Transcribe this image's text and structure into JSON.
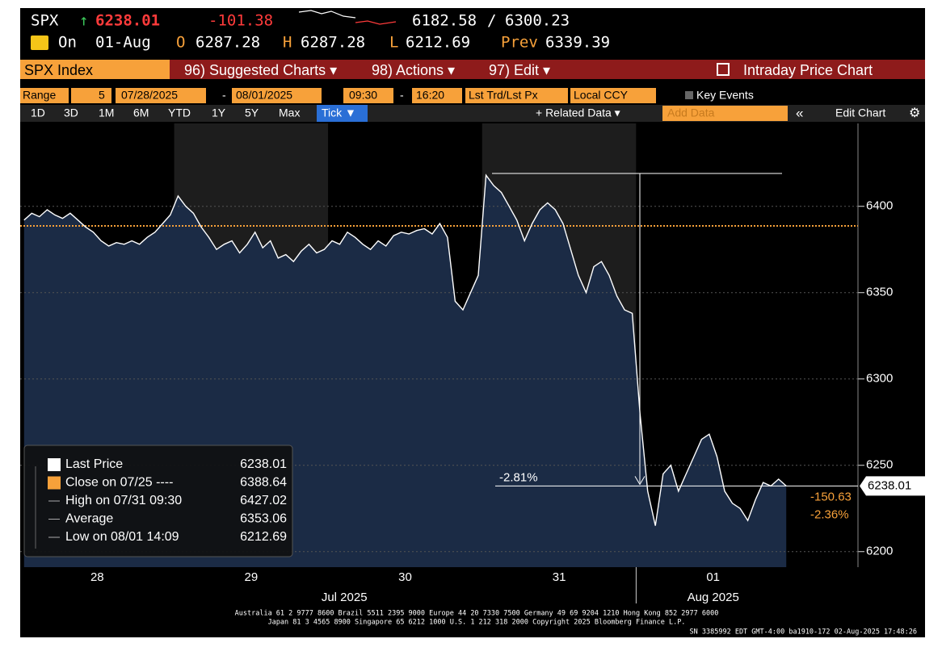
{
  "header": {
    "ticker": "SPX",
    "arrow": "↑",
    "last": "6238.01",
    "change": "-101.38",
    "range_low": "6182.58",
    "range_sep": "/",
    "range_high": "6300.23",
    "on": "On",
    "date": "01-Aug",
    "open_label": "O",
    "open": "6287.28",
    "high_label": "H",
    "high": "6287.28",
    "low_label": "L",
    "low": "6212.69",
    "prev_label": "Prev",
    "prev": "6339.39"
  },
  "toolbar": {
    "security": "SPX Index",
    "items": [
      "96) Suggested Charts ▾",
      "98) Actions ▾",
      "97) Edit ▾"
    ],
    "title": "Intraday Price Chart"
  },
  "range_bar": {
    "label": "Range",
    "days": "5",
    "start_date": "07/28/2025",
    "dash1": "-",
    "end_date": "08/01/2025",
    "start_time": "09:30",
    "dash2": "-",
    "end_time": "16:20",
    "field": "Lst Trd/Lst Px",
    "currency": "Local CCY",
    "key_events": "Key Events"
  },
  "tabs": {
    "periods": [
      "1D",
      "3D",
      "1M",
      "6M",
      "YTD",
      "1Y",
      "5Y",
      "Max"
    ],
    "active": "Tick ▼",
    "related": "+ Related Data ▾",
    "add_data": "Add Data",
    "collapse": "«",
    "edit": "Edit Chart",
    "settings": "⚙"
  },
  "chart_data": {
    "type": "line",
    "day_labels": [
      "28",
      "29",
      "30",
      "31",
      "01"
    ],
    "month_labels": [
      "Jul 2025",
      "Aug 2025"
    ],
    "series": [
      {
        "name": "Last Price",
        "color": "#ffffff",
        "values": [
          6392,
          6396,
          6394,
          6398,
          6395,
          6393,
          6396,
          6392,
          6388,
          6385,
          6380,
          6377,
          6379,
          6378,
          6380,
          6378,
          6382,
          6385,
          6390,
          6395,
          6406,
          6400,
          6396,
          6388,
          6382,
          6375,
          6378,
          6380,
          6373,
          6378,
          6385,
          6376,
          6380,
          6370,
          6372,
          6368,
          6374,
          6378,
          6373,
          6375,
          6380,
          6378,
          6385,
          6382,
          6378,
          6375,
          6380,
          6377,
          6383,
          6385,
          6384,
          6386,
          6387,
          6384,
          6390,
          6382,
          6345,
          6340,
          6350,
          6360,
          6418,
          6412,
          6408,
          6400,
          6392,
          6380,
          6390,
          6398,
          6402,
          6398,
          6390,
          6375,
          6360,
          6350,
          6365,
          6368,
          6360,
          6348,
          6340,
          6338,
          6280,
          6235,
          6215,
          6245,
          6250,
          6235,
          6245,
          6255,
          6265,
          6268,
          6255,
          6235,
          6228,
          6225,
          6218,
          6230,
          6240,
          6238,
          6242,
          6238
        ]
      }
    ],
    "ylim": [
      6191,
      6448
    ],
    "yticks": [
      6200,
      6250,
      6300,
      6350,
      6400
    ],
    "legend": [
      {
        "name": "Last Price",
        "value": 6238.01,
        "color": "#ffffff"
      },
      {
        "name": "Close on 07/25 ----",
        "value": 6388.64,
        "color": "#f7a13a"
      },
      {
        "name": "High on 07/31 09:30",
        "value": 6427.02
      },
      {
        "name": "Average",
        "value": 6353.06
      },
      {
        "name": "Low on 08/01 14:09",
        "value": 6212.69
      }
    ],
    "annotations": {
      "measure": "-2.81%",
      "net_change": "-150.63",
      "pct_change": "-2.36%"
    }
  },
  "footer": [
    "Australia 61 2 9777 8600 Brazil 5511 2395 9000 Europe 44 20 7330 7500 Germany 49 69 9204 1210 Hong Kong 852 2977 6000",
    "Japan 81 3 4565 8900     Singapore 65 6212 1000     U.S. 1 212 318 2000          Copyright 2025 Bloomberg Finance L.P.",
    "SN 3385992 EDT  GMT-4:00 ba1910-172 02-Aug-2025 17:48:26"
  ]
}
